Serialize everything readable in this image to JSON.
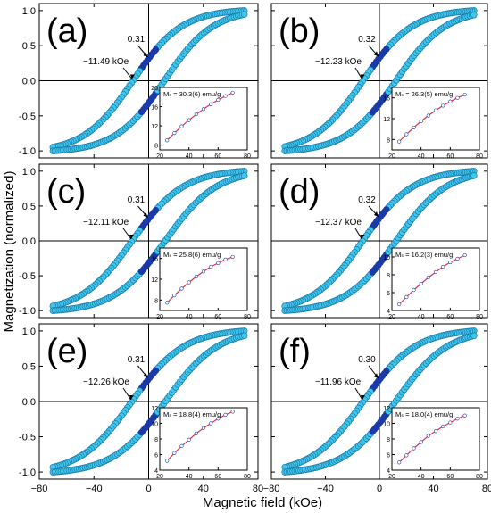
{
  "figure": {
    "ylabel": "Magnetization (normalized)",
    "xlabel": "Magnetic field (kOe)"
  },
  "colors": {
    "marker_fill": "#40c8ec",
    "marker_edge": "#1878a8",
    "marker_dense": "#1a3aa8",
    "fit_line": "#e0304a",
    "axis": "#000000"
  },
  "chart_data": [
    {
      "type": "scatter",
      "panel": "(a)",
      "xlim": [
        -80,
        80
      ],
      "ylim": [
        -1.1,
        1.1
      ],
      "x_ticks": [
        -80,
        -40,
        0,
        40,
        80
      ],
      "y_ticks": [
        -1.0,
        -0.5,
        0.0,
        0.5,
        1.0
      ],
      "show_x_ticklabels": false,
      "show_y_ticklabels": true,
      "remanence_label": "0.31",
      "remanence": 0.31,
      "coercivity_label": "−11.49 kOe",
      "coercivity": -11.49,
      "field_max": 70,
      "inset": {
        "label": "Mₛ = 30.3(6) emu/g",
        "xlim": [
          20,
          80
        ],
        "x_ticks": [
          20,
          40,
          60,
          80
        ],
        "ylim": [
          7,
          20
        ],
        "y_ticks": [
          8,
          12,
          16,
          20
        ],
        "x": [
          25,
          30,
          35,
          40,
          45,
          50,
          55,
          60,
          65,
          70
        ],
        "y": [
          9.0,
          10.5,
          11.9,
          13.2,
          14.4,
          15.5,
          16.5,
          17.4,
          18.2,
          18.9
        ]
      }
    },
    {
      "type": "scatter",
      "panel": "(b)",
      "xlim": [
        -80,
        80
      ],
      "ylim": [
        -1.1,
        1.1
      ],
      "x_ticks": [
        -80,
        -40,
        0,
        40,
        80
      ],
      "y_ticks": [
        -1.0,
        -0.5,
        0.0,
        0.5,
        1.0
      ],
      "show_x_ticklabels": false,
      "show_y_ticklabels": false,
      "remanence_label": "0.32",
      "remanence": 0.32,
      "coercivity_label": "−12.23 kOe",
      "coercivity": -12.23,
      "field_max": 70,
      "inset": {
        "label": "Mₛ = 26.3(5) emu/g",
        "xlim": [
          20,
          80
        ],
        "x_ticks": [
          20,
          40,
          60,
          80
        ],
        "ylim": [
          6,
          18
        ],
        "y_ticks": [
          8,
          12,
          16
        ],
        "x": [
          25,
          30,
          35,
          40,
          45,
          50,
          55,
          60,
          65,
          70
        ],
        "y": [
          7.6,
          9.0,
          10.3,
          11.5,
          12.6,
          13.6,
          14.5,
          15.3,
          16.0,
          16.6
        ]
      }
    },
    {
      "type": "scatter",
      "panel": "(c)",
      "xlim": [
        -80,
        80
      ],
      "ylim": [
        -1.1,
        1.1
      ],
      "x_ticks": [
        -80,
        -40,
        0,
        40,
        80
      ],
      "y_ticks": [
        -1.0,
        -0.5,
        0.0,
        0.5,
        1.0
      ],
      "show_x_ticklabels": false,
      "show_y_ticklabels": true,
      "remanence_label": "0.31",
      "remanence": 0.31,
      "coercivity_label": "−12.11 kOe",
      "coercivity": -12.11,
      "field_max": 70,
      "inset": {
        "label": "Mₛ = 25.8(6) emu/g",
        "xlim": [
          20,
          80
        ],
        "x_ticks": [
          20,
          40,
          60,
          80
        ],
        "ylim": [
          6,
          18
        ],
        "y_ticks": [
          8,
          12,
          16
        ],
        "x": [
          25,
          30,
          35,
          40,
          45,
          50,
          55,
          60,
          65,
          70
        ],
        "y": [
          7.5,
          8.9,
          10.2,
          11.4,
          12.5,
          13.5,
          14.4,
          15.1,
          15.8,
          16.3
        ]
      }
    },
    {
      "type": "scatter",
      "panel": "(d)",
      "xlim": [
        -80,
        80
      ],
      "ylim": [
        -1.1,
        1.1
      ],
      "x_ticks": [
        -80,
        -40,
        0,
        40,
        80
      ],
      "y_ticks": [
        -1.0,
        -0.5,
        0.0,
        0.5,
        1.0
      ],
      "show_x_ticklabels": false,
      "show_y_ticklabels": false,
      "remanence_label": "0.32",
      "remanence": 0.32,
      "coercivity_label": "−12.37 kOe",
      "coercivity": -12.37,
      "field_max": 70,
      "inset": {
        "label": "Mₛ = 16.2(3) emu/g",
        "xlim": [
          20,
          80
        ],
        "x_ticks": [
          20,
          40,
          60,
          80
        ],
        "ylim": [
          4,
          11
        ],
        "y_ticks": [
          4,
          6,
          8,
          10
        ],
        "x": [
          25,
          30,
          35,
          40,
          45,
          50,
          55,
          60,
          65,
          70
        ],
        "y": [
          4.7,
          5.5,
          6.3,
          7.0,
          7.7,
          8.3,
          8.9,
          9.4,
          9.8,
          10.2
        ]
      }
    },
    {
      "type": "scatter",
      "panel": "(e)",
      "xlim": [
        -80,
        80
      ],
      "ylim": [
        -1.1,
        1.1
      ],
      "x_ticks": [
        -80,
        -40,
        0,
        40,
        80
      ],
      "y_ticks": [
        -1.0,
        -0.5,
        0.0,
        0.5,
        1.0
      ],
      "show_x_ticklabels": true,
      "show_y_ticklabels": true,
      "remanence_label": "0.31",
      "remanence": 0.31,
      "coercivity_label": "−12.26 kOe",
      "coercivity": -12.26,
      "field_max": 70,
      "inset": {
        "label": "Mₛ = 18.8(4) emu/g",
        "xlim": [
          20,
          80
        ],
        "x_ticks": [
          20,
          40,
          60,
          80
        ],
        "ylim": [
          4,
          12
        ],
        "y_ticks": [
          4,
          6,
          8,
          10,
          12
        ],
        "x": [
          25,
          30,
          35,
          40,
          45,
          50,
          55,
          60,
          65,
          70
        ],
        "y": [
          5.2,
          6.2,
          7.1,
          7.9,
          8.7,
          9.4,
          10.0,
          10.6,
          11.1,
          11.5
        ]
      }
    },
    {
      "type": "scatter",
      "panel": "(f)",
      "xlim": [
        -80,
        80
      ],
      "ylim": [
        -1.1,
        1.1
      ],
      "x_ticks": [
        -80,
        -40,
        0,
        40,
        80
      ],
      "y_ticks": [
        -1.0,
        -0.5,
        0.0,
        0.5,
        1.0
      ],
      "show_x_ticklabels": true,
      "show_y_ticklabels": false,
      "remanence_label": "0.30",
      "remanence": 0.3,
      "coercivity_label": "−11.96 kOe",
      "coercivity": -11.96,
      "field_max": 70,
      "inset": {
        "label": "Mₛ = 18.0(4) emu/g",
        "xlim": [
          20,
          80
        ],
        "x_ticks": [
          20,
          40,
          60,
          80
        ],
        "ylim": [
          4,
          12
        ],
        "y_ticks": [
          4,
          6,
          8,
          10,
          12
        ],
        "x": [
          25,
          30,
          35,
          40,
          45,
          50,
          55,
          60,
          65,
          70
        ],
        "y": [
          5.0,
          5.9,
          6.8,
          7.6,
          8.4,
          9.0,
          9.6,
          10.1,
          10.6,
          11.0
        ]
      }
    }
  ]
}
